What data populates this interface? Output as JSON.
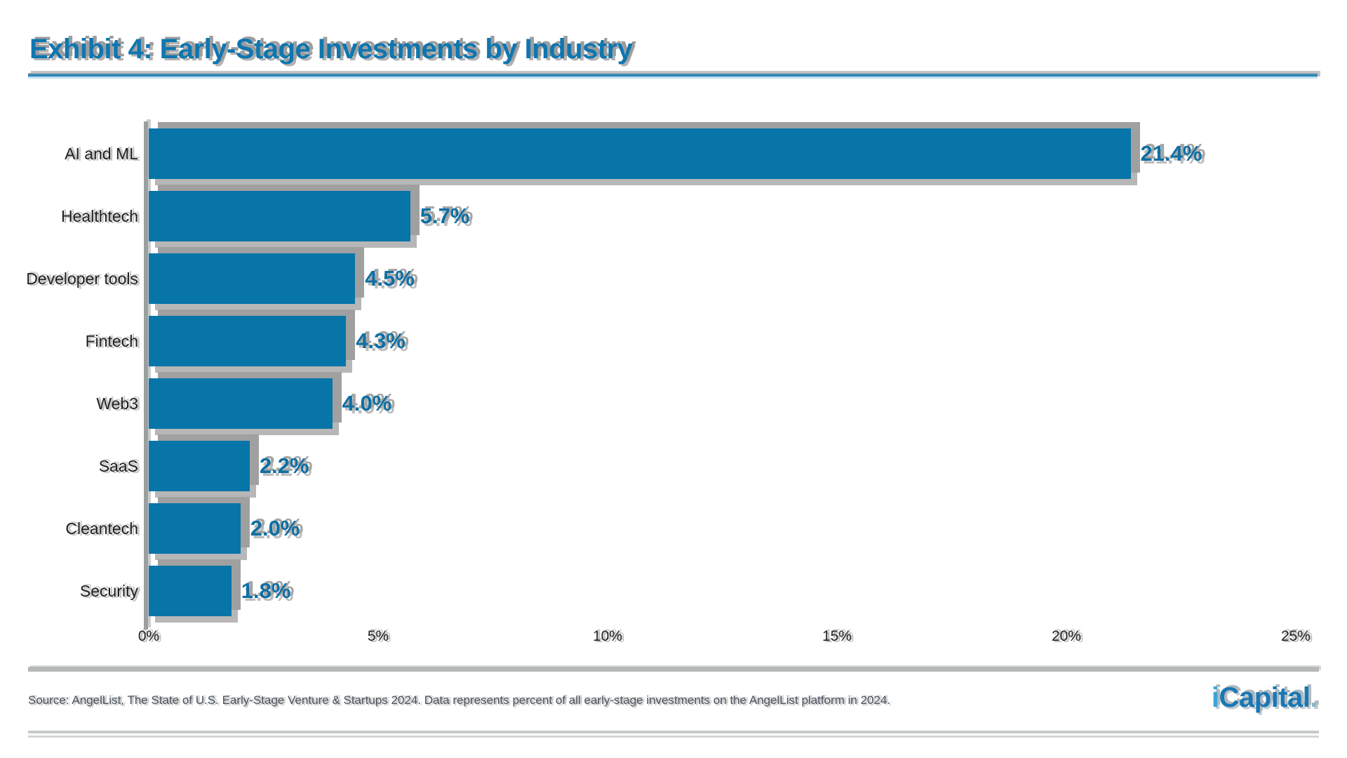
{
  "page": {
    "title": "Exhibit 4: Early-Stage Investments by Industry",
    "source_note": "Source: AngelList, The State of U.S. Early-Stage Venture & Startups 2024. Data represents percent of all early-stage investments on the AngelList platform in 2024.",
    "logo": {
      "prefix": "i",
      "rest": "Capital",
      "dot": "."
    }
  },
  "colors": {
    "bar_blue": "#0775a8",
    "title_blue": "#0f76b0",
    "value_label_blue": "#0f6fa3",
    "rule_blue": "#2e84b4",
    "rule_light_blue": "#bfe2f2",
    "shadow_gray": "#a0a0a0",
    "footer_rule_gray": "#b4b8b8",
    "text_dark": "#1f1f1f",
    "source_text_gray": "#49525c",
    "logo_i_blue": "#3aa4d8",
    "logo_rest_blue": "#1b77b4"
  },
  "chart_data": {
    "type": "bar",
    "orientation": "horizontal",
    "title": "Exhibit 4: Early-Stage Investments by Industry",
    "categories": [
      "AI and ML",
      "Healthtech",
      "Developer tools",
      "Fintech",
      "Web3",
      "SaaS",
      "Cleantech",
      "Security"
    ],
    "values": [
      21.4,
      5.7,
      4.5,
      4.3,
      4.0,
      2.2,
      2.0,
      1.8
    ],
    "value_labels": [
      "21.4%",
      "5.7%",
      "4.5%",
      "4.3%",
      "4.0%",
      "2.2%",
      "2.0%",
      "1.8%"
    ],
    "xlabel": "",
    "ylabel": "",
    "xlim": [
      0,
      25
    ],
    "x_ticks": [
      {
        "value": 0,
        "label": "0%"
      },
      {
        "value": 5,
        "label": "5%"
      },
      {
        "value": 10,
        "label": "10%"
      },
      {
        "value": 15,
        "label": "15%"
      },
      {
        "value": 20,
        "label": "20%"
      },
      {
        "value": 25,
        "label": "25%"
      }
    ],
    "grid": false,
    "legend": false,
    "bar_order": "descending, largest at top"
  }
}
